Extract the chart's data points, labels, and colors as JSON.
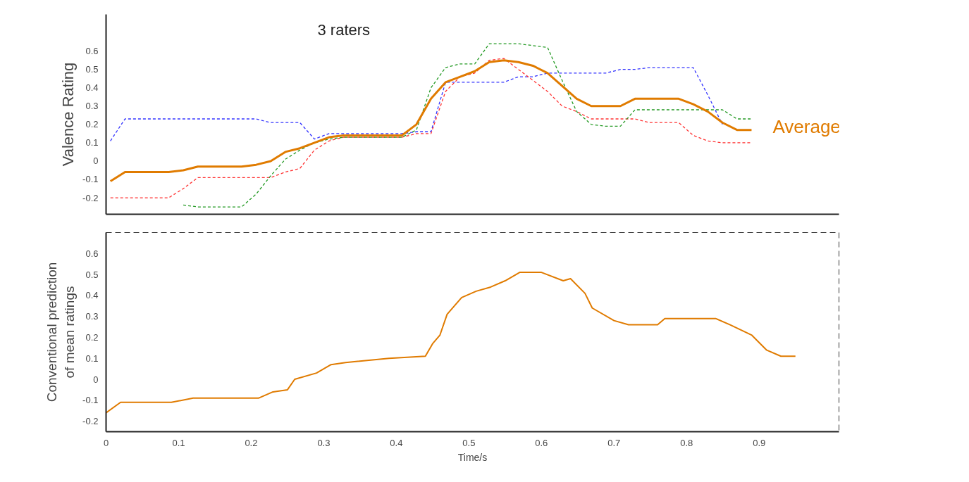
{
  "chart_data": [
    {
      "type": "line",
      "ylabel": "Valence Rating",
      "annotations": [
        "3 raters"
      ],
      "tick_labels": "y",
      "grid": false,
      "ylim": [
        -0.29,
        0.8
      ],
      "yticks": [
        -0.2,
        -0.1,
        0,
        0.1,
        0.2,
        0.3,
        0.4,
        0.5,
        0.6
      ],
      "categories": [
        null,
        null,
        null,
        null,
        null,
        null,
        null,
        null,
        null,
        null,
        null,
        null,
        null,
        null,
        null,
        null,
        null,
        null,
        null,
        null,
        null,
        null,
        null,
        null,
        null,
        null,
        null,
        null,
        null,
        null,
        null,
        null,
        null,
        null,
        null,
        null,
        null,
        null,
        null,
        null,
        null,
        null,
        null,
        null,
        null
      ],
      "series": [
        {
          "color": "#3333ff",
          "line_style": "dashed",
          "values": [
            0.11,
            0.23,
            0.23,
            0.23,
            0.23,
            0.23,
            0.23,
            0.23,
            0.23,
            0.23,
            0.23,
            0.21,
            0.21,
            0.21,
            0.12,
            0.15,
            0.15,
            0.15,
            0.15,
            0.15,
            0.15,
            0.16,
            0.16,
            0.43,
            0.43,
            0.43,
            0.43,
            0.43,
            0.46,
            0.46,
            0.48,
            0.48,
            0.48,
            0.48,
            0.48,
            0.5,
            0.5,
            0.51,
            0.51,
            0.51,
            0.51,
            0.36,
            0.2,
            null,
            null
          ]
        },
        {
          "color": "#ff3333",
          "line_style": "dashed",
          "values": [
            -0.2,
            -0.2,
            -0.2,
            -0.2,
            -0.2,
            -0.15,
            -0.09,
            -0.09,
            -0.09,
            -0.09,
            -0.09,
            -0.09,
            -0.06,
            -0.04,
            0.06,
            0.11,
            0.13,
            0.13,
            0.13,
            0.13,
            0.13,
            0.15,
            0.15,
            0.38,
            0.46,
            0.48,
            0.55,
            0.56,
            0.5,
            0.44,
            0.38,
            0.3,
            0.27,
            0.23,
            0.23,
            0.23,
            0.23,
            0.21,
            0.21,
            0.21,
            0.14,
            0.11,
            0.1,
            0.1,
            0.1
          ]
        },
        {
          "color": "#229922",
          "line_style": "dashed",
          "values": [
            null,
            null,
            null,
            null,
            null,
            -0.24,
            -0.25,
            -0.25,
            -0.25,
            -0.25,
            -0.18,
            -0.08,
            0.01,
            0.06,
            0.1,
            0.12,
            0.13,
            0.13,
            0.13,
            0.13,
            0.13,
            0.17,
            0.4,
            0.51,
            0.53,
            0.53,
            0.64,
            0.64,
            0.64,
            0.63,
            0.62,
            0.44,
            0.27,
            0.2,
            0.19,
            0.19,
            0.28,
            0.28,
            0.28,
            0.28,
            0.28,
            0.28,
            0.28,
            0.23,
            0.23
          ]
        },
        {
          "name": "Average",
          "color": "#e07b00",
          "line_style": "solid",
          "values": [
            -0.11,
            -0.06,
            -0.06,
            -0.06,
            -0.06,
            -0.05,
            -0.03,
            -0.03,
            -0.03,
            -0.03,
            -0.02,
            0.0,
            0.05,
            0.07,
            0.1,
            0.13,
            0.14,
            0.14,
            0.14,
            0.14,
            0.14,
            0.2,
            0.34,
            0.43,
            0.46,
            0.49,
            0.54,
            0.55,
            0.54,
            0.52,
            0.48,
            0.41,
            0.34,
            0.3,
            0.3,
            0.3,
            0.34,
            0.34,
            0.34,
            0.34,
            0.31,
            0.27,
            0.21,
            0.17,
            0.17
          ]
        }
      ]
    },
    {
      "type": "line",
      "xlabel": "Time/s",
      "ylabel": "Conventional prediction\nof mean ratings",
      "grid": false,
      "xlim": [
        0,
        1.01
      ],
      "xticks": [
        0,
        0.1,
        0.2,
        0.3,
        0.4,
        0.5,
        0.6,
        0.7,
        0.8,
        0.9
      ],
      "ylim": [
        -0.25,
        0.7
      ],
      "yticks": [
        -0.2,
        -0.1,
        0,
        0.1,
        0.2,
        0.3,
        0.4,
        0.5,
        0.6
      ],
      "series": [
        {
          "color": "#e07b00",
          "line_style": "solid",
          "x": [
            0,
            0.02,
            0.09,
            0.12,
            0.21,
            0.23,
            0.25,
            0.26,
            0.29,
            0.31,
            0.33,
            0.39,
            0.44,
            0.45,
            0.46,
            0.47,
            0.49,
            0.51,
            0.53,
            0.55,
            0.57,
            0.6,
            0.63,
            0.64,
            0.66,
            0.67,
            0.7,
            0.72,
            0.76,
            0.77,
            0.84,
            0.86,
            0.89,
            0.91,
            0.93,
            0.95
          ],
          "values": [
            -0.16,
            -0.11,
            -0.11,
            -0.09,
            -0.09,
            -0.06,
            -0.05,
            0.0,
            0.03,
            0.07,
            0.08,
            0.1,
            0.11,
            0.17,
            0.21,
            0.31,
            0.39,
            0.42,
            0.44,
            0.47,
            0.51,
            0.51,
            0.47,
            0.48,
            0.41,
            0.34,
            0.28,
            0.26,
            0.26,
            0.29,
            0.29,
            0.26,
            0.21,
            0.14,
            0.11,
            0.11
          ]
        }
      ]
    }
  ]
}
